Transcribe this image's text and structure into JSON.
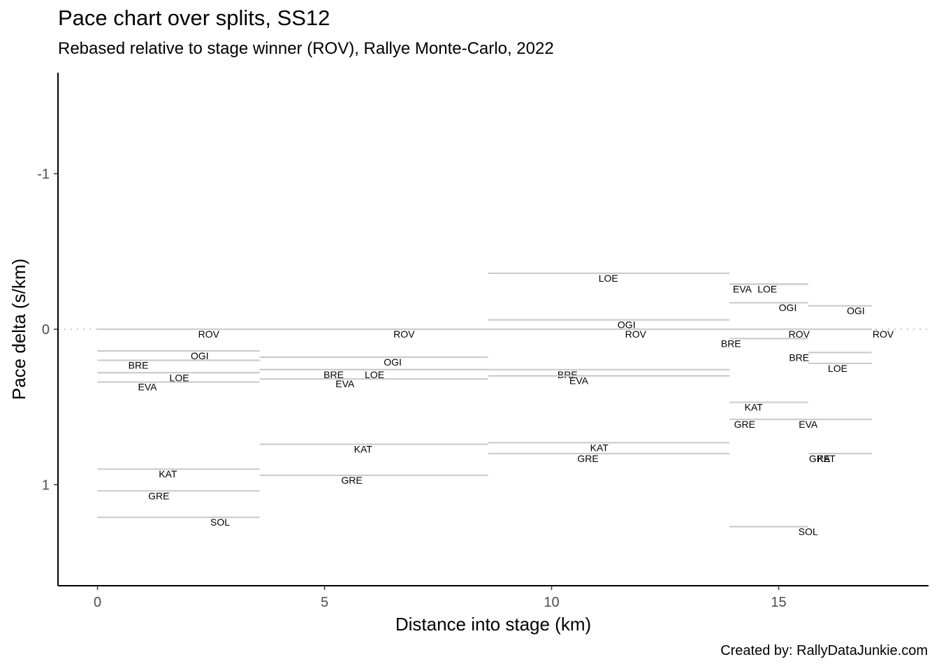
{
  "title": "Pace chart over splits, SS12",
  "subtitle": "Rebased relative to stage winner (ROV), Rallye Monte-Carlo, 2022",
  "caption": "Created by: RallyDataJunkie.com",
  "chart_data": {
    "type": "line",
    "title": "Pace chart over splits, SS12",
    "subtitle": "Rebased relative to stage winner (ROV), Rallye Monte-Carlo, 2022",
    "xlabel": "Distance into stage (km)",
    "ylabel": "Pace delta (s/km)",
    "xlim": [
      -0.87,
      18.3
    ],
    "ylim": [
      -1.65,
      1.65
    ],
    "y_reversed": true,
    "x_ticks": [
      0,
      5,
      10,
      15
    ],
    "x_tick_labels": [
      "0",
      "5",
      "10",
      "15"
    ],
    "y_ticks": [
      -1,
      0,
      1
    ],
    "y_tick_labels": [
      "-1",
      "0",
      "1"
    ],
    "reference_line": 0,
    "grid": false,
    "line_color": "#cccccc",
    "label_color": "#000000",
    "splits": [
      {
        "start": 0,
        "end": 3.57,
        "drivers": [
          {
            "code": "ROV",
            "pace": 0.0,
            "label_x": 2.45
          },
          {
            "code": "OGI",
            "pace": 0.14,
            "label_x": 2.25
          },
          {
            "code": "BRE",
            "pace": 0.2,
            "label_x": 0.9
          },
          {
            "code": "LOE",
            "pace": 0.28,
            "label_x": 1.8
          },
          {
            "code": "EVA",
            "pace": 0.34,
            "label_x": 1.1
          },
          {
            "code": "KAT",
            "pace": 0.9,
            "label_x": 1.55
          },
          {
            "code": "GRE",
            "pace": 1.04,
            "label_x": 1.35
          },
          {
            "code": "SOL",
            "pace": 1.21,
            "label_x": 2.7
          }
        ]
      },
      {
        "start": 3.57,
        "end": 8.6,
        "drivers": [
          {
            "code": "ROV",
            "pace": 0.0,
            "label_x": 6.75
          },
          {
            "code": "OGI",
            "pace": 0.18,
            "label_x": 6.5
          },
          {
            "code": "LOE",
            "pace": 0.26,
            "label_x": 6.1
          },
          {
            "code": "BRE",
            "pace": 0.26,
            "label_x": 5.2
          },
          {
            "code": "EVA",
            "pace": 0.32,
            "label_x": 5.45
          },
          {
            "code": "KAT",
            "pace": 0.74,
            "label_x": 5.85
          },
          {
            "code": "GRE",
            "pace": 0.94,
            "label_x": 5.6
          }
        ]
      },
      {
        "start": 8.6,
        "end": 13.92,
        "drivers": [
          {
            "code": "LOE",
            "pace": -0.36,
            "label_x": 11.25
          },
          {
            "code": "OGI",
            "pace": -0.06,
            "label_x": 11.65
          },
          {
            "code": "ROV",
            "pace": 0.0,
            "label_x": 11.85
          },
          {
            "code": "BRE",
            "pace": 0.26,
            "label_x": 10.35
          },
          {
            "code": "EVA",
            "pace": 0.3,
            "label_x": 10.6
          },
          {
            "code": "KAT",
            "pace": 0.73,
            "label_x": 11.05
          },
          {
            "code": "GRE",
            "pace": 0.8,
            "label_x": 10.8
          }
        ]
      },
      {
        "start": 13.92,
        "end": 15.65,
        "drivers": [
          {
            "code": "EVA",
            "pace": -0.29,
            "label_x": 14.2
          },
          {
            "code": "LOE",
            "pace": -0.29,
            "label_x": 14.75
          },
          {
            "code": "OGI",
            "pace": -0.17,
            "label_x": 15.2
          },
          {
            "code": "ROV",
            "pace": 0.0,
            "label_x": 15.45
          },
          {
            "code": "BRE",
            "pace": 0.06,
            "label_x": 13.95
          },
          {
            "code": "KAT",
            "pace": 0.47,
            "label_x": 14.45
          },
          {
            "code": "GRE",
            "pace": 0.58,
            "label_x": 14.25
          },
          {
            "code": "SOL",
            "pace": 1.27,
            "label_x": 15.65
          }
        ]
      },
      {
        "start": 15.65,
        "end": 17.05,
        "drivers": [
          {
            "code": "OGI",
            "pace": -0.15,
            "label_x": 16.7
          },
          {
            "code": "ROV",
            "pace": 0.0,
            "label_x": 17.3
          },
          {
            "code": "BRE",
            "pace": 0.15,
            "label_x": 15.45
          },
          {
            "code": "LOE",
            "pace": 0.22,
            "label_x": 16.3
          },
          {
            "code": "EVA",
            "pace": 0.58,
            "label_x": 15.65
          },
          {
            "code": "GRE",
            "pace": 0.8,
            "label_x": 15.9
          },
          {
            "code": "KAT",
            "pace": 0.8,
            "label_x": 16.05
          }
        ]
      }
    ]
  }
}
